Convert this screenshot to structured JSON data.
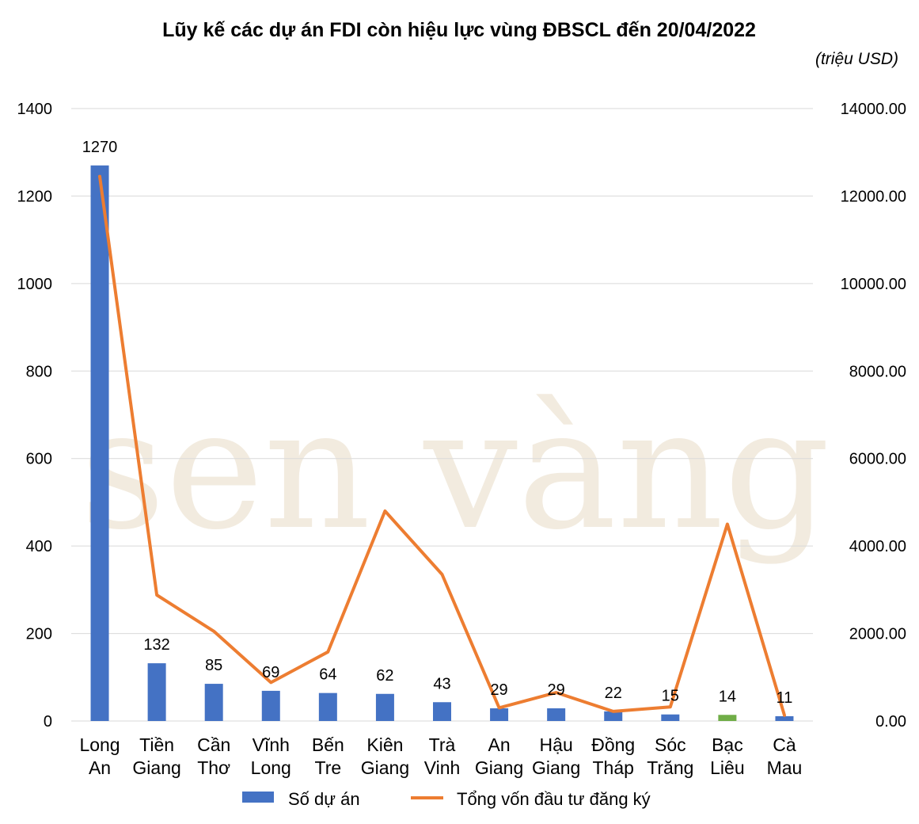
{
  "chart_data": {
    "type": "bar",
    "title": "Lũy kế các dự án FDI còn hiệu lực vùng ĐBSCL đến 20/04/2022",
    "unit_note": "(triệu USD)",
    "categories": [
      [
        "Long",
        "An"
      ],
      [
        "Tiền",
        "Giang"
      ],
      [
        "Cần",
        "Thơ"
      ],
      [
        "Vĩnh",
        "Long"
      ],
      [
        "Bến",
        "Tre"
      ],
      [
        "Kiên",
        "Giang"
      ],
      [
        "Trà",
        "Vinh"
      ],
      [
        "An",
        "Giang"
      ],
      [
        "Hậu",
        "Giang"
      ],
      [
        "Đồng",
        "Tháp"
      ],
      [
        "Sóc",
        "Trăng"
      ],
      [
        "Bạc",
        "Liêu"
      ],
      [
        "Cà",
        "Mau"
      ]
    ],
    "series": [
      {
        "name": "Số dự án",
        "type": "bar",
        "axis": "left",
        "color": "#4472c4",
        "highlight_color": "#70ad47",
        "highlight_index": 11,
        "values": [
          1270,
          132,
          85,
          69,
          64,
          62,
          43,
          29,
          29,
          22,
          15,
          14,
          11
        ],
        "labels": [
          "1270",
          "132",
          "85",
          "69",
          "64",
          "62",
          "43",
          "29",
          "29",
          "22",
          "15",
          "14",
          "11"
        ]
      },
      {
        "name": "Tổng vốn đầu tư đăng ký",
        "type": "line",
        "axis": "right",
        "color": "#ed7d31",
        "values": [
          12450,
          2880,
          2050,
          880,
          1580,
          4800,
          3350,
          300,
          650,
          220,
          320,
          4500,
          130
        ]
      }
    ],
    "y_left": {
      "min": 0,
      "max": 1400,
      "ticks": [
        "0",
        "200",
        "400",
        "600",
        "800",
        "1000",
        "1200",
        "1400"
      ]
    },
    "y_right": {
      "min": 0,
      "max": 14000,
      "ticks": [
        "0.00",
        "2000.00",
        "4000.00",
        "6000.00",
        "8000.00",
        "10000.00",
        "12000.00",
        "14000.00"
      ]
    },
    "grid": true,
    "legend_position": "bottom",
    "watermark": "sen vàng"
  }
}
